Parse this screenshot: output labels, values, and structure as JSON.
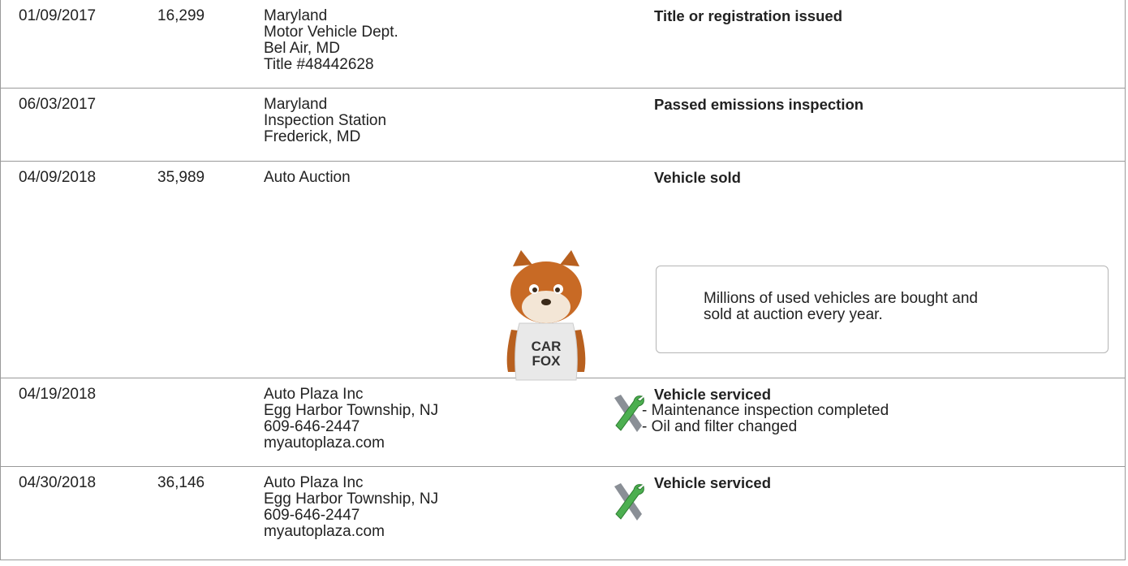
{
  "rows": [
    {
      "date": "01/09/2017",
      "odometer": "16,299",
      "source": [
        "Maryland",
        "Motor Vehicle Dept.",
        "Bel Air, MD",
        "Title #48442628"
      ],
      "comments": {
        "title": "Title or registration issued"
      }
    },
    {
      "date": "06/03/2017",
      "source": [
        "Maryland",
        "Inspection Station",
        "Frederick, MD"
      ],
      "comments": {
        "title": "Passed emissions inspection"
      }
    },
    {
      "date": "04/09/2018",
      "odometer": "35,989",
      "source": [
        "Auto Auction"
      ],
      "comments": {
        "title": "Vehicle sold"
      },
      "callout": [
        "Millions of used vehicles are bought and",
        "sold at auction every year."
      ],
      "mascot_shirt": [
        "CAR",
        "FOX"
      ]
    },
    {
      "date": "04/19/2018",
      "source": [
        "Auto Plaza Inc",
        "Egg Harbor Township, NJ",
        "609-646-2447",
        "myautoplaza.com"
      ],
      "comments": {
        "title": "Vehicle serviced",
        "details": [
          "- Maintenance inspection completed",
          "- Oil and filter changed"
        ]
      }
    },
    {
      "date": "04/30/2018",
      "odometer": "36,146",
      "source": [
        "Auto Plaza Inc",
        "Egg Harbor Township, NJ",
        "609-646-2447",
        "myautoplaza.com"
      ],
      "comments": {
        "title": "Vehicle serviced"
      }
    }
  ]
}
